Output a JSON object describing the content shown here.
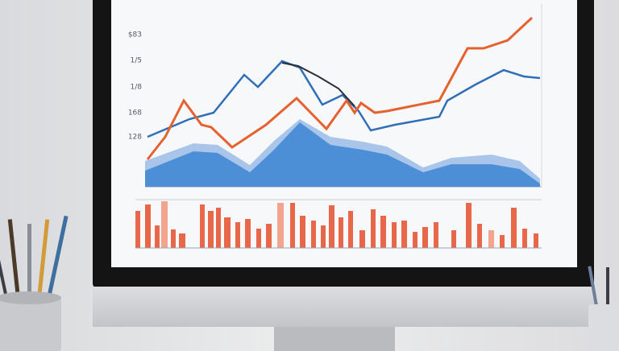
{
  "screen": {
    "y_labels": [
      "$83",
      "1/5",
      "1/8",
      "168",
      "128"
    ]
  }
}
